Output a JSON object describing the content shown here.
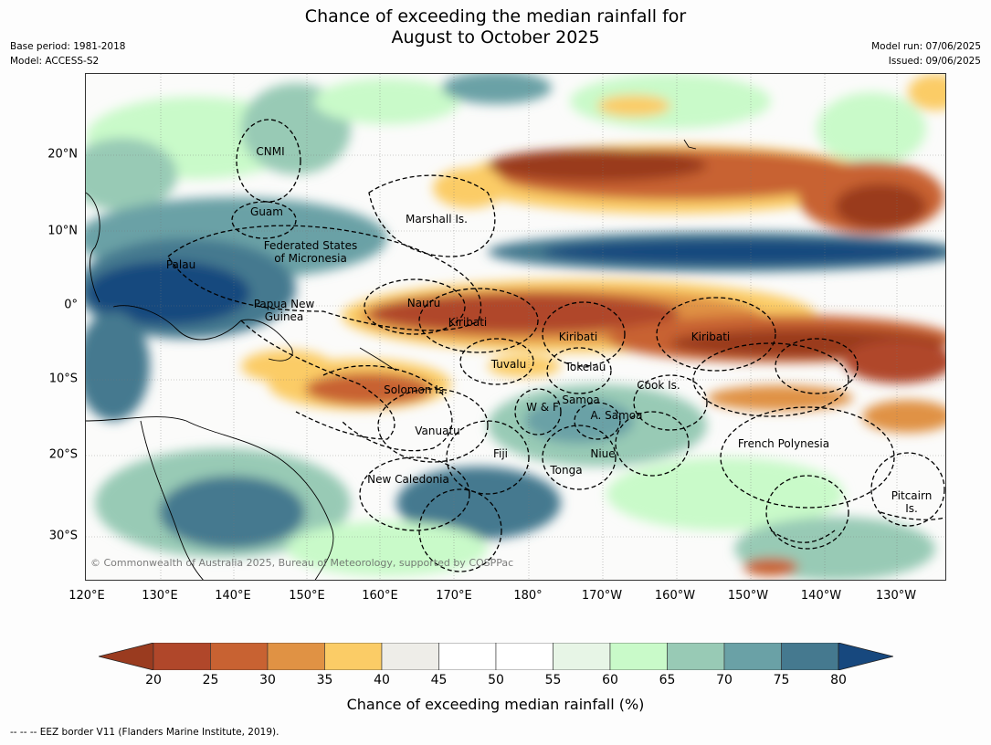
{
  "header": {
    "title_line1": "Chance of exceeding the median rainfall for",
    "title_line2": "August to October 2025",
    "base_period": "Base period: 1981-2018",
    "model": "Model: ACCESS-S2",
    "model_run": "Model run: 07/06/2025",
    "issued": "Issued: 09/06/2025"
  },
  "map": {
    "lat_labels": [
      "20°N",
      "10°N",
      "0°",
      "10°S",
      "20°S",
      "30°S"
    ],
    "lon_labels": [
      "120°E",
      "130°E",
      "140°E",
      "150°E",
      "160°E",
      "170°E",
      "180°",
      "170°W",
      "160°W",
      "150°W",
      "140°W",
      "130°W"
    ],
    "regions": {
      "cnmi": "CNMI",
      "guam": "Guam",
      "marshall": "Marshall Is.",
      "fsm1": "Federated States",
      "fsm2": "of Micronesia",
      "palau": "Palau",
      "png1": "Papua New",
      "png2": "Guinea",
      "nauru": "Nauru",
      "kiribati_w": "Kiribati",
      "kiribati_c": "Kiribati",
      "kiribati_e": "Kiribati",
      "tuvalu": "Tuvalu",
      "tokelau": "Tokelau",
      "cook": "Cook Is.",
      "solomon": "Solomon Is.",
      "samoa": "Samoa",
      "wf": "W & F",
      "asamoa": "A. Samoa",
      "vanuatu": "Vanuatu",
      "fiji": "Fiji",
      "niue": "Niue",
      "fp": "French Polynesia",
      "tonga": "Tonga",
      "newcal": "New Caledonia",
      "pitcairn1": "Pitcairn",
      "pitcairn2": "Is."
    },
    "copyright": "© Commonwealth of Australia 2025, Bureau of Meteorology, supported by COSPPac"
  },
  "colorbar": {
    "ticks": [
      "20",
      "25",
      "30",
      "35",
      "40",
      "45",
      "50",
      "55",
      "60",
      "65",
      "70",
      "75",
      "80"
    ],
    "colors": [
      "#9a3b1f",
      "#b0472a",
      "#c86232",
      "#e09244",
      "#fbcc66",
      "#eeede8",
      "#ffffff",
      "#ffffff",
      "#e7f5e6",
      "#c9fac9",
      "#98cab5",
      "#6aa1a6",
      "#45798f",
      "#17487e"
    ],
    "title": "Chance of exceeding median rainfall (%)"
  },
  "footer": "--  --  -- EEZ border V11 (Flanders Marine Institute, 2019)."
}
